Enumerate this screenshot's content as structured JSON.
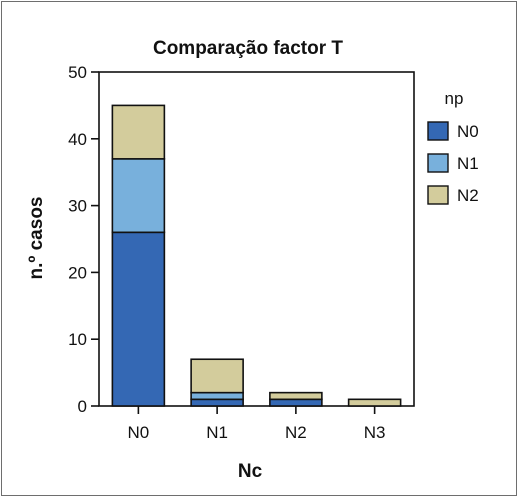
{
  "chart_data": {
    "type": "bar",
    "stacked": true,
    "title": "Comparação factor T",
    "xlabel": "Nc",
    "ylabel": "n.º casos",
    "categories": [
      "N0",
      "N1",
      "N2",
      "N3"
    ],
    "series": [
      {
        "name": "N0",
        "values": [
          26,
          1,
          1,
          0
        ],
        "color": "#3468b4"
      },
      {
        "name": "N1",
        "values": [
          11,
          1,
          0,
          0
        ],
        "color": "#78b0dc"
      },
      {
        "name": "N2",
        "values": [
          8,
          5,
          1,
          1
        ],
        "color": "#d3cc9c"
      }
    ],
    "ylim": [
      0,
      50
    ],
    "yticks": [
      0,
      10,
      20,
      30,
      40,
      50
    ],
    "legend": {
      "title": "np",
      "position": "right"
    },
    "grid": false
  }
}
